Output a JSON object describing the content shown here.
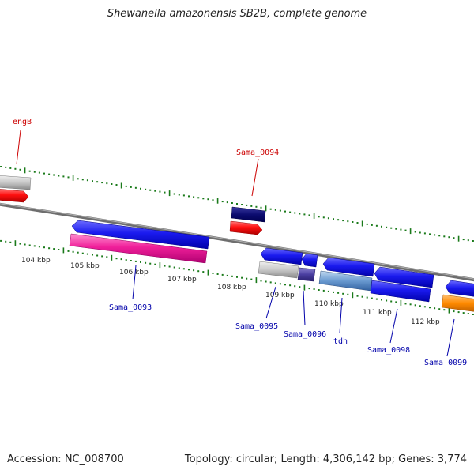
{
  "title": "Shewanella amazonensis SB2B, complete genome",
  "footer": {
    "accession": "Accession: NC_008700",
    "stats": "Topology: circular; Length: 4,306,142 bp; Genes: 3,774"
  },
  "colors": {
    "forward_label": "#cc0000",
    "reverse_label": "#0000aa",
    "ticks": "#1a7a1a",
    "backbone": "#777777"
  },
  "scale_labels": [
    "104 kbp",
    "105 kbp",
    "106 kbp",
    "107 kbp",
    "108 kbp",
    "109 kbp",
    "110 kbp",
    "111 kbp",
    "112 kbp"
  ],
  "gene_labels": {
    "engB": "engB",
    "sama_0094": "Sama_0094",
    "sama_0093": "Sama_0093",
    "sama_0095": "Sama_0095",
    "sama_0096": "Sama_0096",
    "tdh": "tdh",
    "sama_0098": "Sama_0098",
    "sama_0099": "Sama_0099"
  }
}
